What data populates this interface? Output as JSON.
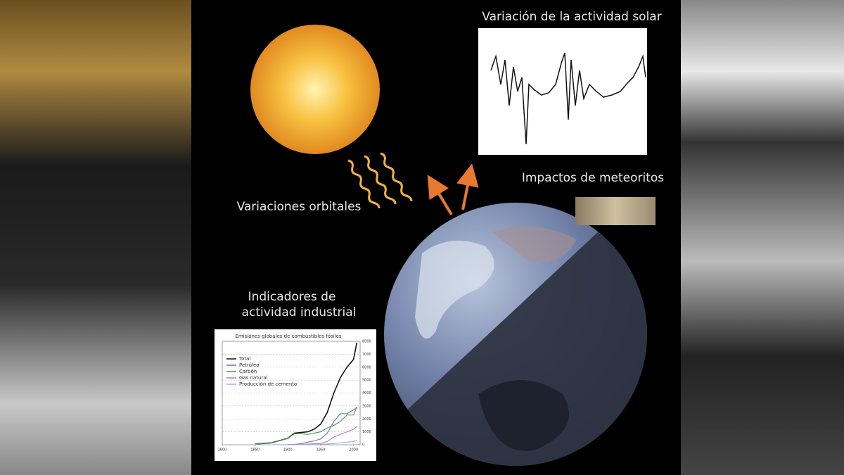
{
  "labels": {
    "solar": "Variación de la actividad solar",
    "meteorites": "Impactos de meteoritos",
    "orbital": "Variaciones orbitales",
    "industrial": [
      "Indicadores de",
      "actividad industrial"
    ]
  },
  "chart_data": {
    "type": "line",
    "title": "Emisiones globales de combustibles fósiles",
    "x": [
      1850,
      1875,
      1900,
      1910,
      1920,
      1930,
      1940,
      1950,
      1960,
      1970,
      1980,
      1990,
      2000,
      2005
    ],
    "series": [
      {
        "name": "Total",
        "color": "#111111",
        "values": [
          50,
          150,
          500,
          900,
          950,
          1000,
          1200,
          1600,
          2500,
          4000,
          5200,
          6000,
          6600,
          7900
        ]
      },
      {
        "name": "Petróleo",
        "color": "#6a6acd",
        "values": [
          0,
          0,
          10,
          30,
          80,
          200,
          300,
          450,
          900,
          1800,
          2400,
          2400,
          2700,
          2900
        ]
      },
      {
        "name": "Carbón",
        "color": "#4f8f4f",
        "values": [
          50,
          150,
          500,
          850,
          850,
          800,
          900,
          1000,
          1300,
          1500,
          1800,
          2300,
          2300,
          2900
        ]
      },
      {
        "name": "Gas natural",
        "color": "#b07ac0",
        "values": [
          0,
          0,
          0,
          10,
          20,
          50,
          80,
          100,
          250,
          600,
          800,
          1000,
          1200,
          1400
        ]
      },
      {
        "name": "Producción de cemento",
        "color": "#9ab0e0",
        "values": [
          0,
          0,
          0,
          0,
          10,
          20,
          20,
          30,
          60,
          100,
          150,
          200,
          250,
          350
        ]
      }
    ],
    "xlim": [
      1800,
      2010
    ],
    "xticks": [
      1800,
      1850,
      1900,
      1950,
      2000
    ],
    "ylim": [
      0,
      8000
    ],
    "yticks": [
      0,
      1000,
      2000,
      3000,
      4000,
      5000,
      6000,
      7000,
      8000
    ],
    "grid": true
  }
}
